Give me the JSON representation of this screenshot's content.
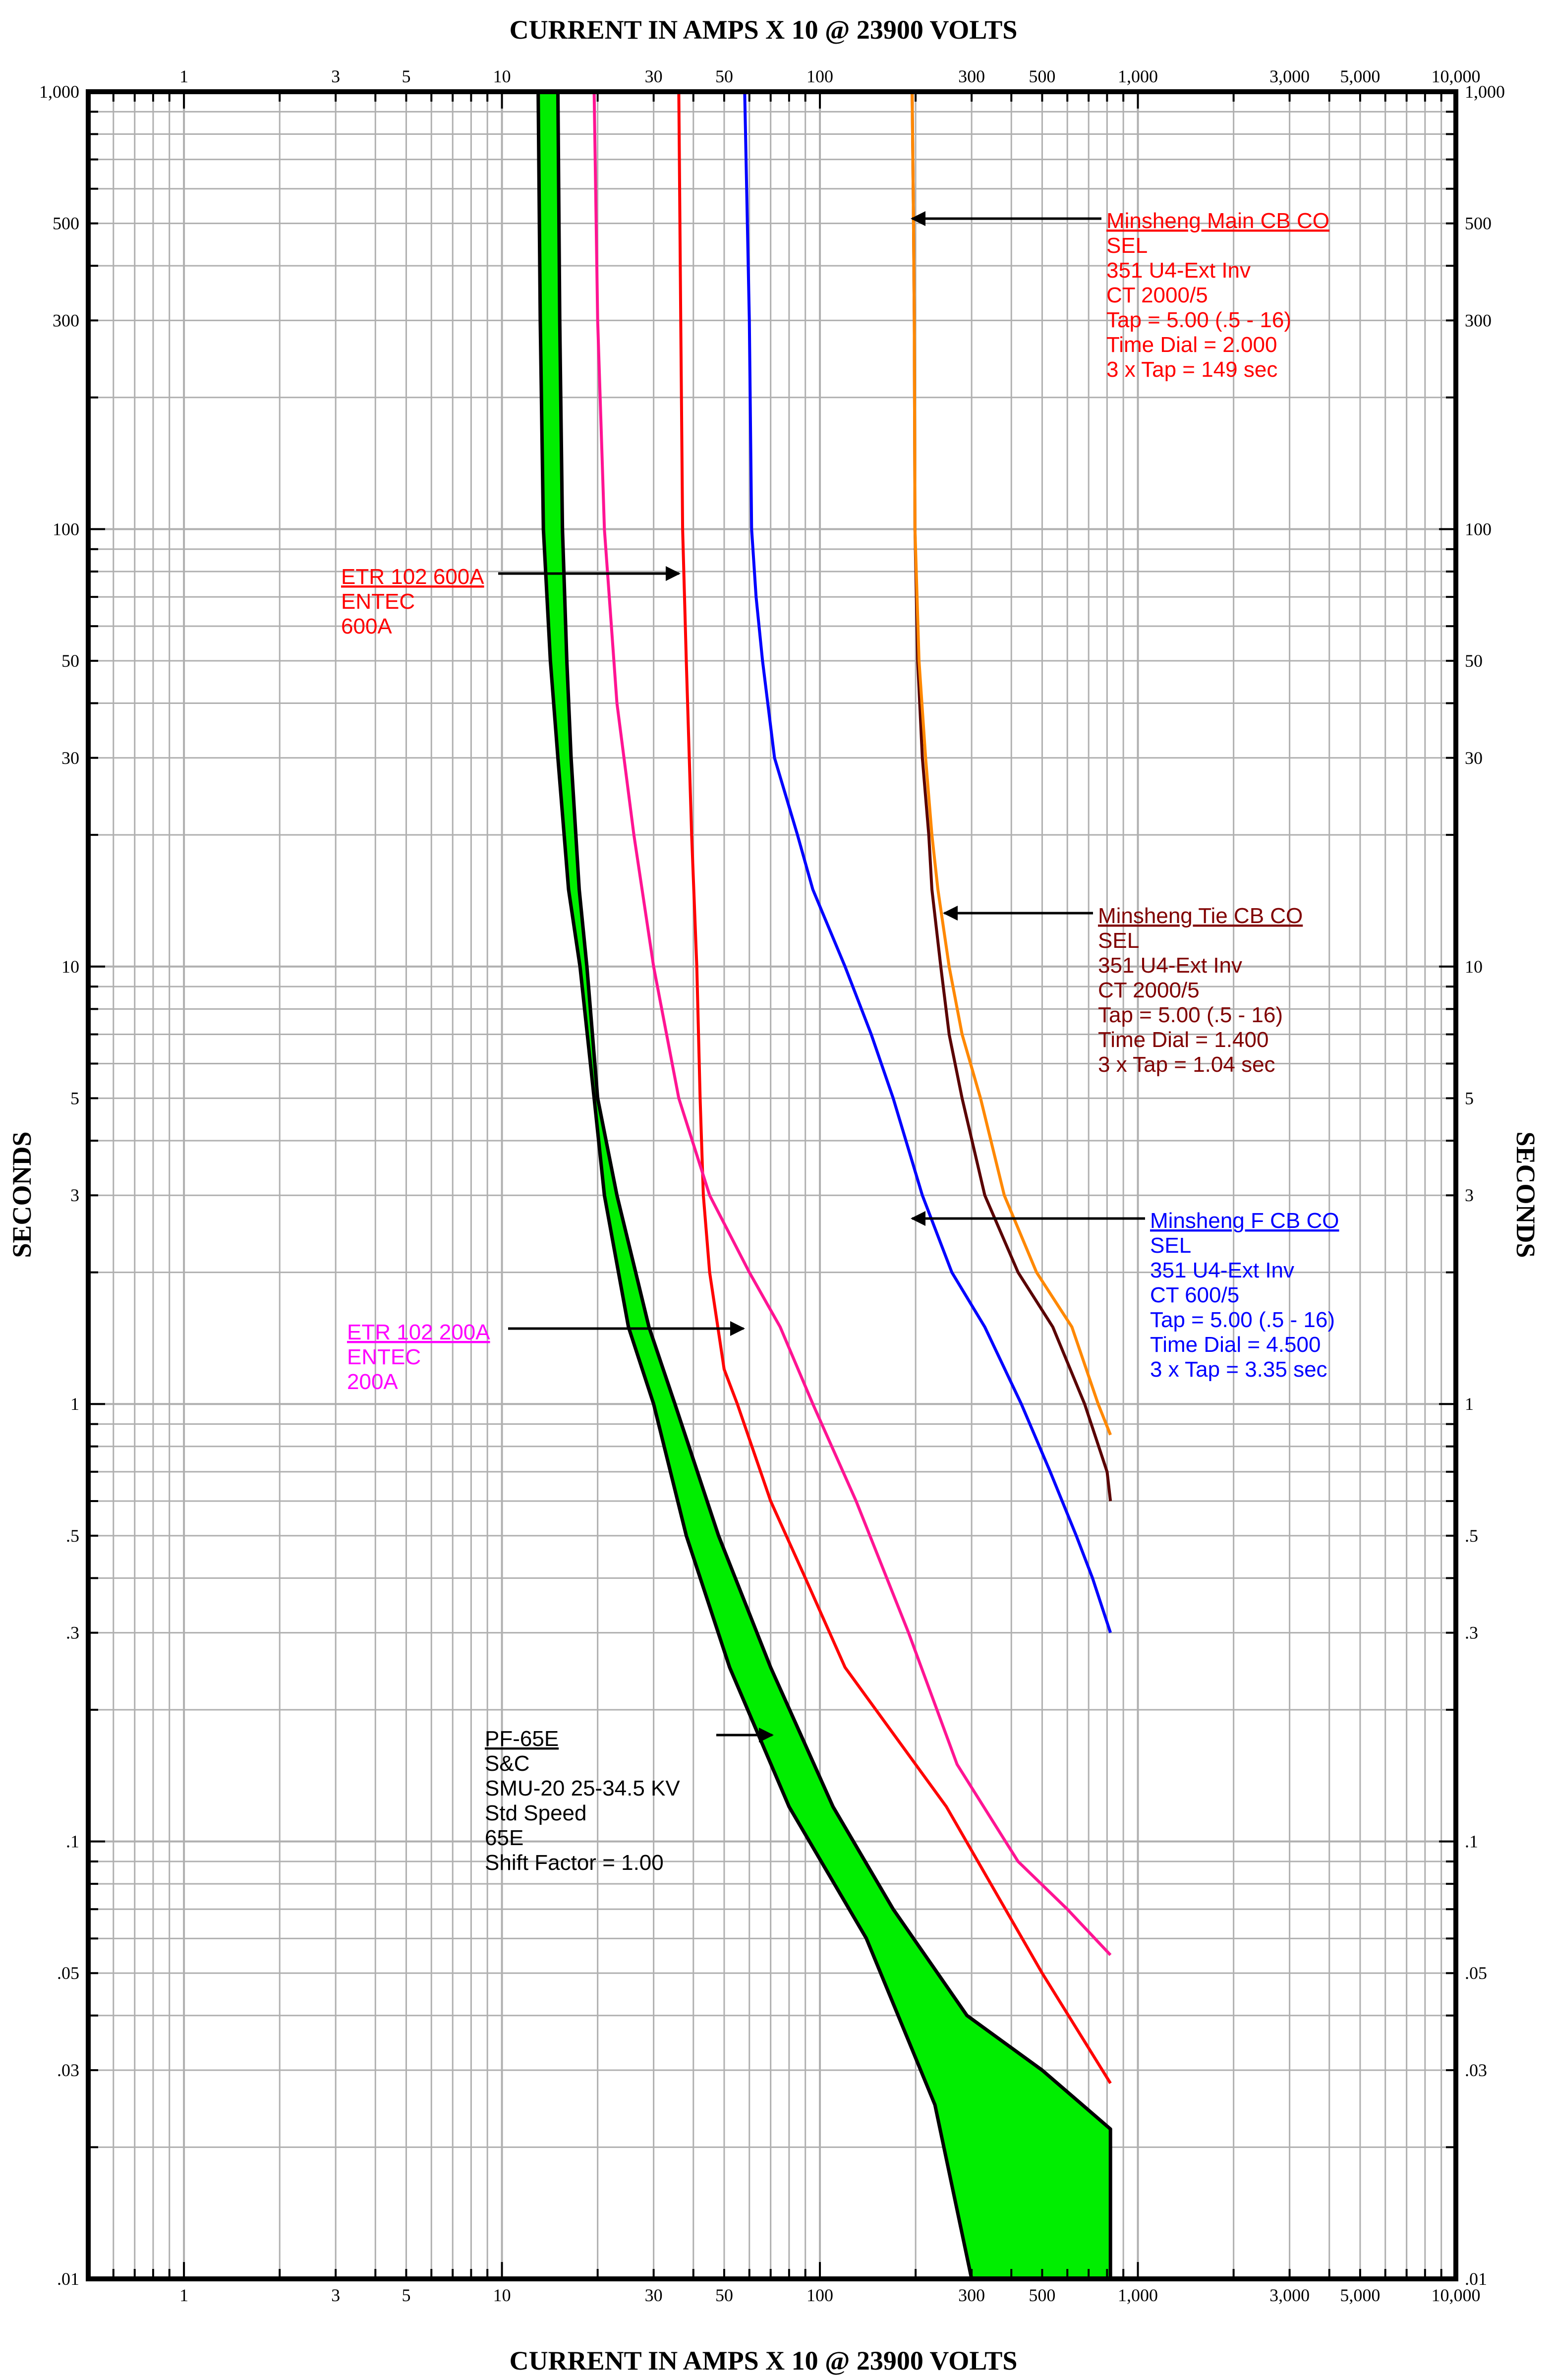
{
  "chart_data": {
    "type": "line",
    "title": "CURRENT IN AMPS X 10 @ 23900 VOLTS",
    "xlabel": "CURRENT IN AMPS X 10 @ 23900 VOLTS",
    "ylabel": "SECONDS",
    "x_scale": "log",
    "y_scale": "log",
    "xlim": [
      0.5,
      10000
    ],
    "ylim": [
      0.01,
      1000
    ],
    "grid": true,
    "x_tick_labels": [
      {
        "v": 1,
        "t": "1"
      },
      {
        "v": 3,
        "t": "3"
      },
      {
        "v": 5,
        "t": "5"
      },
      {
        "v": 10,
        "t": "10"
      },
      {
        "v": 30,
        "t": "30"
      },
      {
        "v": 50,
        "t": "50"
      },
      {
        "v": 100,
        "t": "100"
      },
      {
        "v": 300,
        "t": "300"
      },
      {
        "v": 500,
        "t": "500"
      },
      {
        "v": 1000,
        "t": "1,000"
      },
      {
        "v": 3000,
        "t": "3,000"
      },
      {
        "v": 5000,
        "t": "5,000"
      },
      {
        "v": 10000,
        "t": "10,000"
      }
    ],
    "y_tick_labels": [
      {
        "v": 1000,
        "t": "1,000"
      },
      {
        "v": 500,
        "t": "500"
      },
      {
        "v": 300,
        "t": "300"
      },
      {
        "v": 100,
        "t": "100"
      },
      {
        "v": 50,
        "t": "50"
      },
      {
        "v": 30,
        "t": "30"
      },
      {
        "v": 10,
        "t": "10"
      },
      {
        "v": 5,
        "t": "5"
      },
      {
        "v": 3,
        "t": "3"
      },
      {
        "v": 1,
        "t": "1"
      },
      {
        "v": 0.5,
        "t": ".5"
      },
      {
        "v": 0.3,
        "t": ".3"
      },
      {
        "v": 0.1,
        "t": ".1"
      },
      {
        "v": 0.05,
        "t": ".05"
      },
      {
        "v": 0.03,
        "t": ".03"
      },
      {
        "v": 0.01,
        "t": ".01"
      }
    ],
    "series": [
      {
        "id": "main",
        "color": "#5a0000",
        "points": [
          [
            195,
            1000
          ],
          [
            197,
            500
          ],
          [
            198,
            300
          ],
          [
            199,
            100
          ],
          [
            203,
            50
          ],
          [
            210,
            30
          ],
          [
            220,
            20
          ],
          [
            225,
            15
          ],
          [
            240,
            10
          ],
          [
            255,
            7
          ],
          [
            280,
            5
          ],
          [
            330,
            3
          ],
          [
            420,
            2
          ],
          [
            540,
            1.5
          ],
          [
            680,
            1
          ],
          [
            800,
            0.7
          ],
          [
            820,
            0.6
          ]
        ]
      },
      {
        "id": "tie",
        "color": "#ff8800",
        "points": [
          [
            195,
            1000
          ],
          [
            197,
            500
          ],
          [
            198,
            300
          ],
          [
            199,
            100
          ],
          [
            205,
            50
          ],
          [
            215,
            30
          ],
          [
            225,
            20
          ],
          [
            235,
            15
          ],
          [
            255,
            10
          ],
          [
            280,
            7
          ],
          [
            320,
            5
          ],
          [
            380,
            3
          ],
          [
            480,
            2
          ],
          [
            620,
            1.5
          ],
          [
            750,
            1
          ],
          [
            820,
            0.85
          ]
        ]
      },
      {
        "id": "feeder",
        "color": "#0000ff",
        "points": [
          [
            58,
            1000
          ],
          [
            60,
            300
          ],
          [
            61,
            100
          ],
          [
            63,
            70
          ],
          [
            66,
            50
          ],
          [
            72,
            30
          ],
          [
            85,
            20
          ],
          [
            95,
            15
          ],
          [
            120,
            10
          ],
          [
            145,
            7
          ],
          [
            170,
            5
          ],
          [
            210,
            3
          ],
          [
            260,
            2
          ],
          [
            330,
            1.5
          ],
          [
            430,
            1
          ],
          [
            530,
            0.7
          ],
          [
            640,
            0.5
          ],
          [
            720,
            0.4
          ],
          [
            820,
            0.3
          ]
        ]
      },
      {
        "id": "etr600",
        "color": "#ff0000",
        "points": [
          [
            36,
            1000
          ],
          [
            36.5,
            300
          ],
          [
            37,
            100
          ],
          [
            38,
            50
          ],
          [
            39.5,
            20
          ],
          [
            41,
            10
          ],
          [
            42,
            5
          ],
          [
            43,
            3
          ],
          [
            45,
            2
          ],
          [
            50,
            1.2
          ],
          [
            55,
            1
          ],
          [
            70,
            0.6
          ],
          [
            90,
            0.4
          ],
          [
            120,
            0.25
          ],
          [
            250,
            0.12
          ],
          [
            500,
            0.05
          ],
          [
            820,
            0.028
          ]
        ]
      },
      {
        "id": "etr200",
        "color": "#ff1493",
        "points": [
          [
            19.5,
            1000
          ],
          [
            20,
            300
          ],
          [
            21,
            100
          ],
          [
            23,
            40
          ],
          [
            26,
            20
          ],
          [
            30,
            10
          ],
          [
            36,
            5
          ],
          [
            45,
            3
          ],
          [
            60,
            2
          ],
          [
            75,
            1.5
          ],
          [
            95,
            1
          ],
          [
            130,
            0.6
          ],
          [
            190,
            0.3
          ],
          [
            270,
            0.15
          ],
          [
            420,
            0.09
          ],
          [
            600,
            0.07
          ],
          [
            820,
            0.055
          ]
        ]
      }
    ],
    "fuse_band": {
      "id": "fuse",
      "fill": "#00ee00",
      "min_melt": [
        [
          13,
          1000
        ],
        [
          13.2,
          300
        ],
        [
          13.5,
          100
        ],
        [
          14.2,
          50
        ],
        [
          15,
          30
        ],
        [
          16.2,
          15
        ],
        [
          17.6,
          10
        ],
        [
          19.5,
          5
        ],
        [
          21,
          3
        ],
        [
          25,
          1.5
        ],
        [
          30,
          1
        ],
        [
          38,
          0.5
        ],
        [
          52,
          0.25
        ],
        [
          80,
          0.12
        ],
        [
          140,
          0.06
        ],
        [
          230,
          0.025
        ],
        [
          300,
          0.01
        ]
      ],
      "total_clear": [
        [
          15,
          1000
        ],
        [
          15.2,
          300
        ],
        [
          15.5,
          100
        ],
        [
          16,
          50
        ],
        [
          16.5,
          30
        ],
        [
          17.5,
          15
        ],
        [
          18.5,
          10
        ],
        [
          20,
          5
        ],
        [
          23,
          3
        ],
        [
          29,
          1.5
        ],
        [
          35,
          1
        ],
        [
          48,
          0.5
        ],
        [
          70,
          0.25
        ],
        [
          110,
          0.12
        ],
        [
          170,
          0.07
        ],
        [
          290,
          0.04
        ],
        [
          500,
          0.03
        ],
        [
          820,
          0.022
        ],
        [
          820,
          0.01
        ]
      ]
    }
  },
  "labels": {
    "main": {
      "title": "Minsheng Main CB CO",
      "lines": [
        "SEL",
        "351 U4-Ext Inv",
        "CT  2000/5",
        "Tap = 5.00 (.5 - 16)",
        "Time Dial = 2.000",
        "3 x Tap = 149 sec"
      ],
      "color": "#ff0000"
    },
    "tie": {
      "title": "Minsheng Tie CB CO",
      "lines": [
        "SEL",
        "351 U4-Ext Inv",
        "CT  2000/5",
        "Tap = 5.00 (.5 - 16)",
        "Time Dial = 1.400",
        "3 x Tap = 1.04 sec"
      ],
      "color": "#800000"
    },
    "feeder": {
      "title": "Minsheng F CB CO",
      "lines": [
        "SEL",
        "351 U4-Ext Inv",
        "CT  600/5",
        "Tap = 5.00 (.5 - 16)",
        "Time Dial = 4.500",
        "3 x Tap = 3.35 sec"
      ],
      "color": "#0000ff"
    },
    "etr600": {
      "title": "ETR 102 600A",
      "lines": [
        "ENTEC",
        "600A"
      ],
      "color": "#ff0000"
    },
    "etr200": {
      "title": "ETR 102 200A",
      "lines": [
        "ENTEC",
        "200A"
      ],
      "color": "#ff00ff"
    },
    "fuse": {
      "title": "PF-65E",
      "lines": [
        "S&C",
        "SMU-20  25-34.5 KV",
        "Std Speed",
        "65E",
        "Shift Factor = 1.00"
      ],
      "color": "#000000"
    }
  }
}
